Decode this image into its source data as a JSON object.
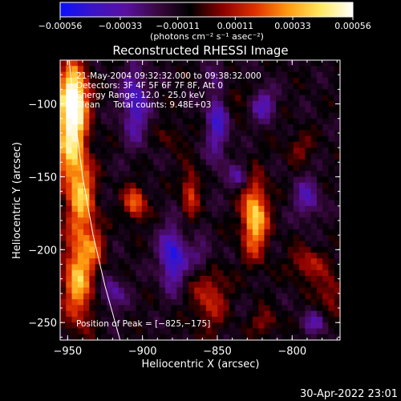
{
  "chart_data": {
    "type": "heatmap",
    "title": "Reconstructed RHESSI Image",
    "xlabel": "Heliocentric X (arcsec)",
    "ylabel": "Heliocentric Y (arcsec)",
    "xlim": [
      -955,
      -768
    ],
    "ylim": [
      -262,
      -70
    ],
    "x_ticks": [
      {
        "value": -950,
        "label": "−950"
      },
      {
        "value": -900,
        "label": "−900"
      },
      {
        "value": -850,
        "label": "−850"
      },
      {
        "value": -800,
        "label": "−800"
      }
    ],
    "y_ticks": [
      {
        "value": -100,
        "label": "−100"
      },
      {
        "value": -150,
        "label": "−150"
      },
      {
        "value": -200,
        "label": "−200"
      },
      {
        "value": -250,
        "label": "−250"
      }
    ],
    "colorbar": {
      "range": [
        -0.00056,
        0.00056
      ],
      "ticks": [
        {
          "value": -0.00056,
          "label": "−0.00056"
        },
        {
          "value": -0.00033,
          "label": "−0.00033"
        },
        {
          "value": -0.00011,
          "label": "−0.00011"
        },
        {
          "value": 0.00011,
          "label": "0.00011"
        },
        {
          "value": 0.00033,
          "label": "0.00033"
        },
        {
          "value": 0.00056,
          "label": "0.00056"
        }
      ],
      "unit_label": "(photons cm⁻² s⁻¹ asec⁻²)",
      "colors": [
        "#0a10ff",
        "#3a14c8",
        "#5a10a0",
        "#3a0840",
        "#000000",
        "#8a0000",
        "#e03000",
        "#ff9a10",
        "#ffe860",
        "#ffffff"
      ]
    },
    "info_lines": [
      "21-May-2004 09:32:32.000 to 09:38:32.000",
      "Detectors: 3F 4F 5F 6F 7F 8F, Att 0",
      "Energy Range: 12.0 - 25.0 keV",
      "Clean     Total counts: 9.48E+03"
    ],
    "peak_label": "Position of Peak = [−825,−175]",
    "peak": {
      "x": -825,
      "y": -175
    },
    "limb_curve": [
      [
        -949,
        -70
      ],
      [
        -945,
        -110
      ],
      [
        -940,
        -150
      ],
      [
        -933,
        -190
      ],
      [
        -925,
        -225
      ],
      [
        -915,
        -262
      ]
    ],
    "sources": [
      {
        "x": -948,
        "y": -118,
        "sx": 7,
        "sy": 28,
        "amp": 0.00056
      },
      {
        "x": -945,
        "y": -95,
        "sx": 6,
        "sy": 14,
        "amp": 0.00042
      },
      {
        "x": -940,
        "y": -165,
        "sx": 6,
        "sy": 18,
        "amp": 0.00038
      },
      {
        "x": -943,
        "y": -220,
        "sx": 7,
        "sy": 22,
        "amp": 0.00046
      },
      {
        "x": -932,
        "y": -198,
        "sx": 5,
        "sy": 10,
        "amp": 0.00022
      },
      {
        "x": -825,
        "y": -178,
        "sx": 6,
        "sy": 18,
        "amp": 0.00052
      },
      {
        "x": -905,
        "y": -168,
        "sx": 5,
        "sy": 8,
        "amp": 0.00036
      },
      {
        "x": -868,
        "y": -160,
        "sx": 4,
        "sy": 12,
        "amp": 0.00028
      },
      {
        "x": -855,
        "y": -232,
        "sx": 8,
        "sy": 16,
        "amp": 0.00024
      },
      {
        "x": -790,
        "y": -210,
        "sx": 8,
        "sy": 8,
        "amp": 0.00022
      },
      {
        "x": -775,
        "y": -230,
        "sx": 6,
        "sy": 10,
        "amp": 0.0002
      },
      {
        "x": -840,
        "y": -95,
        "sx": 8,
        "sy": 6,
        "amp": 0.00016
      },
      {
        "x": -795,
        "y": -130,
        "sx": 7,
        "sy": 7,
        "amp": 0.00014
      },
      {
        "x": -880,
        "y": -122,
        "sx": 6,
        "sy": 6,
        "amp": 0.00012
      },
      {
        "x": -818,
        "y": -250,
        "sx": 6,
        "sy": 6,
        "amp": 0.00018
      },
      {
        "x": -880,
        "y": -205,
        "sx": 6,
        "sy": 14,
        "amp": -0.0004
      },
      {
        "x": -905,
        "y": -100,
        "sx": 6,
        "sy": 18,
        "amp": -0.00032
      },
      {
        "x": -850,
        "y": -110,
        "sx": 5,
        "sy": 22,
        "amp": -0.0003
      },
      {
        "x": -820,
        "y": -100,
        "sx": 6,
        "sy": 8,
        "amp": -0.00026
      },
      {
        "x": -790,
        "y": -165,
        "sx": 6,
        "sy": 10,
        "amp": -0.00024
      },
      {
        "x": -835,
        "y": -150,
        "sx": 5,
        "sy": 6,
        "amp": -0.00022
      },
      {
        "x": -860,
        "y": -205,
        "sx": 6,
        "sy": 8,
        "amp": -0.0002
      },
      {
        "x": -920,
        "y": -230,
        "sx": 6,
        "sy": 8,
        "amp": -0.00022
      },
      {
        "x": -785,
        "y": -250,
        "sx": 6,
        "sy": 6,
        "amp": -0.0002
      }
    ]
  },
  "footer_timestamp": "30-Apr-2022 23:01"
}
